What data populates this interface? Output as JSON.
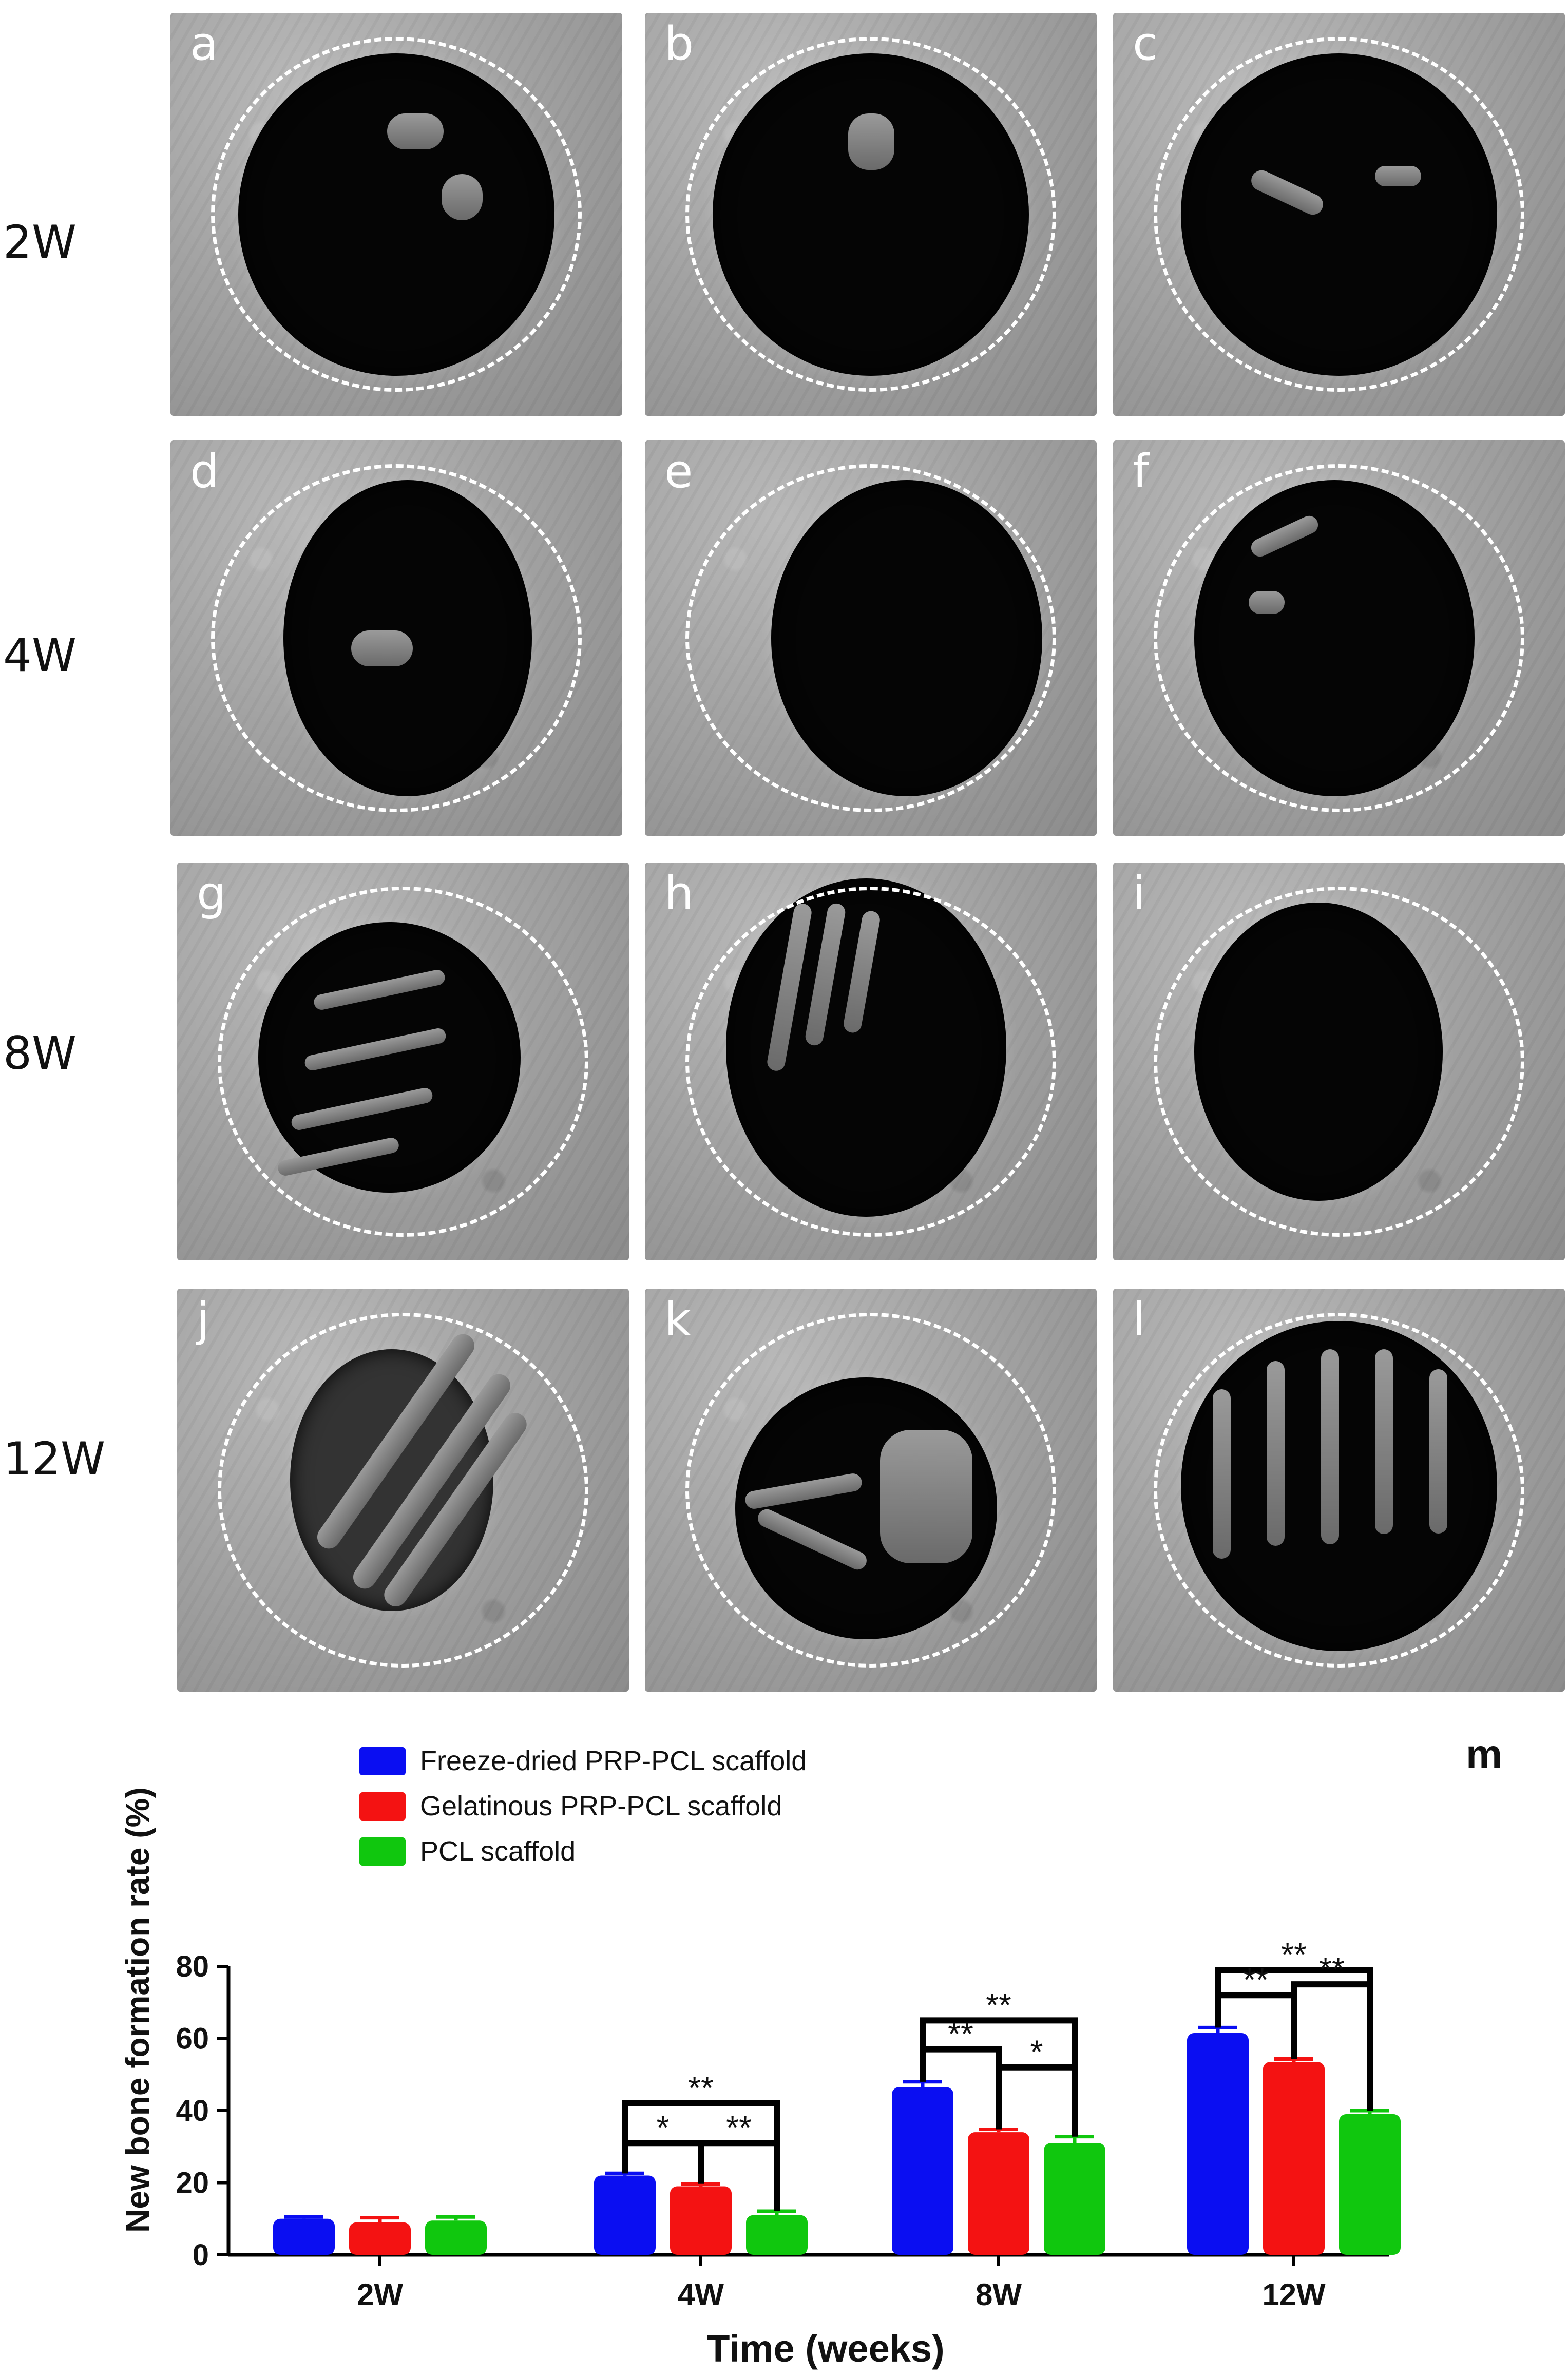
{
  "rows": [
    {
      "label": "2W",
      "panels": [
        "a",
        "b",
        "c"
      ]
    },
    {
      "label": "4W",
      "panels": [
        "d",
        "e",
        "f"
      ]
    },
    {
      "label": "8W",
      "panels": [
        "g",
        "h",
        "i"
      ]
    },
    {
      "label": "12W",
      "panels": [
        "j",
        "k",
        "l"
      ]
    }
  ],
  "chart_panel_letter": "m",
  "colors": {
    "freeze_dried": "#0a0ef2",
    "gelatinous": "#f41212",
    "pcl": "#10c70e"
  },
  "chart_data": {
    "type": "bar",
    "categories": [
      "2W",
      "4W",
      "8W",
      "12W"
    ],
    "series": [
      {
        "name": "Freeze-dried PRP-PCL scaffold",
        "values": [
          10,
          22,
          46.5,
          61.5
        ],
        "errors": [
          0.5,
          0.6,
          1.5,
          1.5
        ]
      },
      {
        "name": "Gelatinous PRP-PCL scaffold",
        "values": [
          9,
          19,
          34,
          53.5
        ],
        "errors": [
          1.3,
          0.7,
          0.8,
          0.8
        ]
      },
      {
        "name": "PCL scaffold",
        "values": [
          9.5,
          11,
          31,
          39
        ],
        "errors": [
          1.0,
          1.1,
          1.8,
          1.0
        ]
      }
    ],
    "xlabel": "Time (weeks)",
    "ylabel": "New bone formation rate (%)",
    "ylim": [
      0,
      80
    ],
    "yticks": [
      "0",
      "20",
      "40",
      "60",
      "80"
    ],
    "legend_position": "top-left",
    "significance": [
      {
        "group": "4W",
        "from": 0,
        "to": 2,
        "label": "**",
        "y": 42
      },
      {
        "group": "4W",
        "from": 0,
        "to": 1,
        "label": "*",
        "y": 31
      },
      {
        "group": "4W",
        "from": 1,
        "to": 2,
        "label": "**",
        "y": 31
      },
      {
        "group": "8W",
        "from": 0,
        "to": 2,
        "label": "**",
        "y": 65
      },
      {
        "group": "8W",
        "from": 0,
        "to": 1,
        "label": "**",
        "y": 57
      },
      {
        "group": "8W",
        "from": 1,
        "to": 2,
        "label": "*",
        "y": 52
      },
      {
        "group": "12W",
        "from": 0,
        "to": 2,
        "label": "**",
        "y": 79
      },
      {
        "group": "12W",
        "from": 0,
        "to": 1,
        "label": "**",
        "y": 72
      },
      {
        "group": "12W",
        "from": 1,
        "to": 2,
        "label": "**",
        "y": 75
      }
    ]
  }
}
